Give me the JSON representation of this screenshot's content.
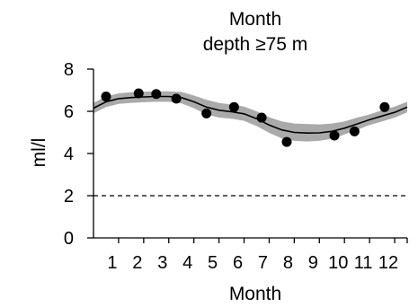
{
  "chart_data": {
    "type": "line",
    "title": "Month",
    "subtitle": "depth ≥75 m",
    "xlabel": "Month",
    "ylabel": "ml/l",
    "xlim": [
      0,
      12.5
    ],
    "ylim": [
      0,
      8
    ],
    "x_ticks": [
      1,
      2,
      3,
      4,
      5,
      6,
      7,
      8,
      9,
      10,
      11,
      12
    ],
    "x_tick_labels": [
      "1",
      "2",
      "3",
      "4",
      "5",
      "6",
      "7",
      "8",
      "9",
      "10",
      "11",
      "12"
    ],
    "y_ticks": [
      0,
      2,
      4,
      6,
      8
    ],
    "y_tick_labels": [
      "0",
      "2",
      "4",
      "6",
      "8"
    ],
    "grid": false,
    "reference_line": {
      "y": 2,
      "style": "dashed"
    },
    "observations": {
      "x": [
        0.5,
        1.8,
        2.5,
        3.3,
        4.5,
        5.6,
        6.7,
        7.7,
        9.6,
        10.4,
        11.6
      ],
      "y": [
        6.7,
        6.85,
        6.82,
        6.6,
        5.9,
        6.2,
        5.7,
        4.55,
        4.85,
        5.05,
        6.2
      ]
    },
    "fit": {
      "x": [
        0,
        0.5,
        1,
        1.5,
        2,
        2.5,
        3,
        3.5,
        4,
        4.5,
        5,
        5.5,
        6,
        6.5,
        7,
        7.5,
        8,
        8.5,
        9,
        9.5,
        10,
        10.5,
        11,
        11.5,
        12,
        12.5
      ],
      "y": [
        6.15,
        6.45,
        6.6,
        6.65,
        6.68,
        6.7,
        6.7,
        6.65,
        6.45,
        6.2,
        6.05,
        5.98,
        5.88,
        5.65,
        5.35,
        5.12,
        5.0,
        4.97,
        4.98,
        5.05,
        5.2,
        5.4,
        5.6,
        5.78,
        5.95,
        6.2
      ],
      "lower": [
        5.9,
        6.2,
        6.35,
        6.4,
        6.43,
        6.45,
        6.45,
        6.38,
        6.15,
        5.85,
        5.7,
        5.65,
        5.55,
        5.3,
        4.98,
        4.72,
        4.6,
        4.57,
        4.6,
        4.7,
        4.9,
        5.12,
        5.35,
        5.52,
        5.7,
        5.95
      ],
      "upper": [
        6.4,
        6.7,
        6.85,
        6.9,
        6.93,
        6.95,
        6.95,
        6.92,
        6.75,
        6.55,
        6.4,
        6.32,
        6.22,
        6.0,
        5.72,
        5.52,
        5.42,
        5.4,
        5.38,
        5.42,
        5.52,
        5.7,
        5.85,
        6.05,
        6.22,
        6.45
      ]
    }
  }
}
